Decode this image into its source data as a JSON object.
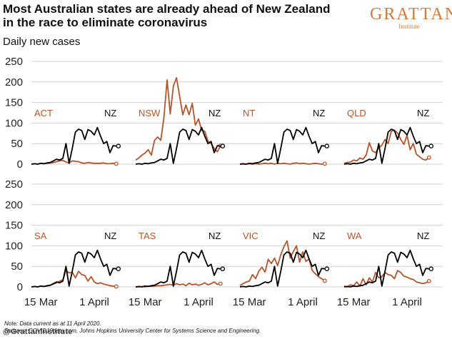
{
  "header": {
    "title": "Most Australian states are already ahead of New Zealand in the race to eliminate coronavirus",
    "logo": "GRATTAN",
    "logo_sub": "Institute",
    "subtitle": "Daily new cases"
  },
  "notes": {
    "line1": "Note: Data current as at 11 April 2020.",
    "line2": "Sources: COVID19data.com, Johns Hopkins University Center for Systems Science and Engineering."
  },
  "watermark": "@GrattanInstitute",
  "colors": {
    "nz": "#000000",
    "state": "#b5542a",
    "grid": "#d0d0d0"
  },
  "chart_data": {
    "type": "line",
    "ylim": [
      0,
      250
    ],
    "yticks": [
      0,
      50,
      100,
      150,
      200,
      250
    ],
    "xticks": [
      {
        "day": 0,
        "label": "15 Mar"
      },
      {
        "day": 17,
        "label": "1 April"
      }
    ],
    "x_range_days": [
      -3,
      27
    ],
    "comparison": {
      "name": "NZ",
      "values": [
        0,
        1,
        0,
        2,
        1,
        3,
        4,
        8,
        12,
        10,
        14,
        50,
        2,
        38,
        78,
        85,
        82,
        60,
        84,
        80,
        71,
        89,
        68,
        50,
        55,
        28,
        45,
        44
      ]
    },
    "panels": [
      {
        "label": "ACT",
        "values": [
          0,
          1,
          0,
          2,
          1,
          2,
          3,
          4,
          6,
          8,
          9,
          5,
          3,
          8,
          7,
          6,
          3,
          2,
          4,
          3,
          2,
          2,
          2,
          3,
          1,
          1,
          2,
          1
        ]
      },
      {
        "label": "NSW",
        "values": [
          10,
          15,
          22,
          27,
          35,
          22,
          58,
          66,
          58,
          114,
          205,
          122,
          190,
          210,
          165,
          120,
          144,
          120,
          148,
          95,
          110,
          82,
          80,
          56,
          50,
          38,
          30,
          45
        ]
      },
      {
        "label": "NT",
        "values": [
          0,
          0,
          0,
          1,
          0,
          1,
          0,
          1,
          2,
          1,
          2,
          0,
          2,
          1,
          2,
          1,
          0,
          2,
          3,
          1,
          2,
          1,
          0,
          1,
          2,
          1,
          0,
          1
        ]
      },
      {
        "label": "QLD",
        "values": [
          2,
          4,
          5,
          10,
          8,
          15,
          12,
          22,
          52,
          32,
          28,
          40,
          46,
          60,
          50,
          80,
          82,
          76,
          60,
          48,
          70,
          35,
          50,
          24,
          18,
          12,
          10,
          16
        ]
      },
      {
        "label": "SA",
        "values": [
          0,
          1,
          0,
          2,
          1,
          2,
          4,
          7,
          10,
          14,
          17,
          40,
          34,
          36,
          22,
          38,
          30,
          28,
          14,
          25,
          12,
          8,
          10,
          7,
          5,
          3,
          2,
          1
        ]
      },
      {
        "label": "TAS",
        "values": [
          0,
          0,
          1,
          0,
          2,
          1,
          2,
          3,
          3,
          4,
          5,
          6,
          4,
          8,
          5,
          7,
          3,
          9,
          5,
          7,
          4,
          6,
          10,
          5,
          8,
          12,
          6,
          8
        ]
      },
      {
        "label": "VIC",
        "values": [
          3,
          8,
          12,
          14,
          30,
          20,
          38,
          48,
          36,
          67,
          57,
          70,
          52,
          78,
          98,
          112,
          70,
          86,
          100,
          60,
          85,
          62,
          68,
          40,
          32,
          25,
          20,
          15
        ]
      },
      {
        "label": "WA",
        "values": [
          2,
          0,
          5,
          3,
          12,
          2,
          20,
          5,
          22,
          12,
          35,
          22,
          25,
          35,
          30,
          28,
          20,
          40,
          35,
          26,
          24,
          20,
          18,
          12,
          10,
          8,
          10,
          14
        ]
      }
    ]
  }
}
